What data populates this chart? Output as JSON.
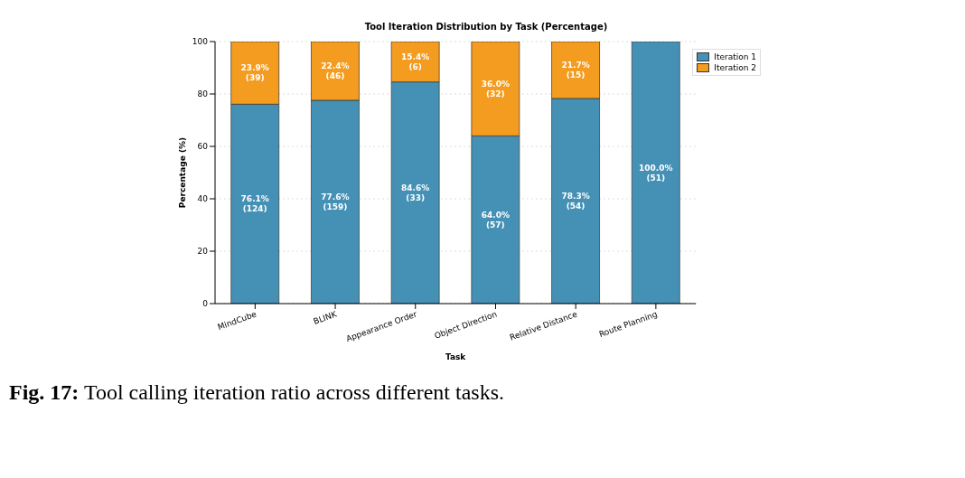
{
  "chart_data": {
    "type": "bar",
    "stacked": true,
    "title": "Tool Iteration Distribution by Task (Percentage)",
    "xlabel": "Task",
    "ylabel": "Percentage (%)",
    "categories": [
      "MindCube",
      "BLINK",
      "Appearance Order",
      "Object Direction",
      "Relative Distance",
      "Route Planning"
    ],
    "series": [
      {
        "name": "Iteration 1",
        "color": "#4591b5",
        "values": [
          76.1,
          77.6,
          84.6,
          64.0,
          78.3,
          100.0
        ],
        "value_labels": [
          "76.1%\n(124)",
          "77.6%\n(159)",
          "84.6%\n(33)",
          "64.0%\n(57)",
          "78.3%\n(54)",
          "100.0%\n(51)"
        ]
      },
      {
        "name": "Iteration 2",
        "color": "#f39c1f",
        "values": [
          23.9,
          22.4,
          15.4,
          36.0,
          21.7,
          0
        ],
        "value_labels": [
          "23.9%\n(39)",
          "22.4%\n(46)",
          "15.4%\n(6)",
          "36.0%\n(32)",
          "21.7%\n(15)",
          null
        ]
      }
    ],
    "ylim": [
      0,
      100
    ],
    "yticks": [
      0,
      20,
      40,
      60,
      80,
      100
    ],
    "grid": "y",
    "legend": "top right",
    "annotations": [
      "Fig. 17: Tool calling iteration ratio across different tasks."
    ]
  }
}
